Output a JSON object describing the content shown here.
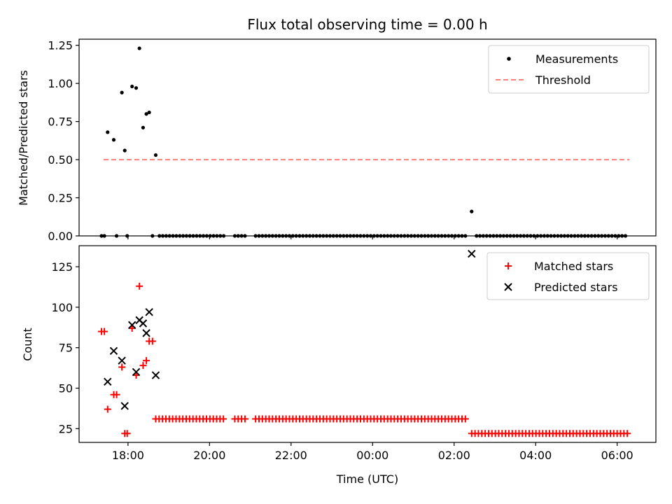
{
  "chart_data": [
    {
      "type": "scatter",
      "title": "Flux total observing time = 0.00 h",
      "xlabel": "",
      "ylabel": "Matched/Predicted stars",
      "ylim": [
        0,
        1.29
      ],
      "yticks": [
        0.0,
        0.25,
        0.5,
        0.75,
        1.0,
        1.25
      ],
      "ytick_labels": [
        "0.00",
        "0.25",
        "0.50",
        "0.75",
        "1.00",
        "1.25"
      ],
      "legend_position": "top-right",
      "series": [
        {
          "name": "Measurements",
          "marker": "dot",
          "color": "#000000",
          "points": [
            [
              17.5,
              0.68
            ],
            [
              17.65,
              0.63
            ],
            [
              17.85,
              0.94
            ],
            [
              17.92,
              0.56
            ],
            [
              18.1,
              0.98
            ],
            [
              18.2,
              0.97
            ],
            [
              18.28,
              1.23
            ],
            [
              18.37,
              0.71
            ],
            [
              18.45,
              0.8
            ],
            [
              18.52,
              0.81
            ],
            [
              18.68,
              0.53
            ],
            [
              26.43,
              0.16
            ],
            [
              17.35,
              0
            ],
            [
              17.42,
              0
            ],
            [
              17.72,
              0
            ],
            [
              17.98,
              0
            ],
            [
              18.6,
              0
            ]
          ],
          "zero_runs": [
            {
              "start": 18.77,
              "end": 20.35,
              "step": 0.083
            },
            {
              "start": 20.62,
              "end": 20.87,
              "step": 0.083
            },
            {
              "start": 21.13,
              "end": 26.3,
              "step": 0.083
            },
            {
              "start": 26.55,
              "end": 30.25,
              "step": 0.083
            }
          ]
        },
        {
          "name": "Threshold",
          "type": "line",
          "style": "dashed",
          "color": "#ff7f7f",
          "x": [
            17.4,
            30.3
          ],
          "values": [
            0.5,
            0.5
          ]
        }
      ]
    },
    {
      "type": "scatter",
      "xlabel": "Time (UTC)",
      "ylabel": "Count",
      "ylim": [
        16.5,
        138
      ],
      "yticks": [
        25,
        50,
        75,
        100,
        125
      ],
      "ytick_labels": [
        "25",
        "50",
        "75",
        "100",
        "125"
      ],
      "x_range_hours": [
        16.8,
        30.95
      ],
      "xticks_hours": [
        18,
        20,
        22,
        24,
        26,
        28,
        30
      ],
      "xtick_labels": [
        "18:00",
        "20:00",
        "22:00",
        "00:00",
        "02:00",
        "04:00",
        "06:00"
      ],
      "legend_position": "top-right",
      "series": [
        {
          "name": "Matched stars",
          "marker": "plus",
          "color": "#ff0000",
          "points": [
            [
              17.35,
              85
            ],
            [
              17.42,
              85
            ],
            [
              17.5,
              37
            ],
            [
              17.65,
              46
            ],
            [
              17.72,
              46
            ],
            [
              17.85,
              63
            ],
            [
              17.92,
              22
            ],
            [
              17.98,
              22
            ],
            [
              18.1,
              87
            ],
            [
              18.2,
              58
            ],
            [
              18.28,
              113
            ],
            [
              18.37,
              64
            ],
            [
              18.45,
              67
            ],
            [
              18.52,
              79
            ],
            [
              18.6,
              79
            ]
          ],
          "runs": [
            {
              "start": 18.68,
              "end": 20.35,
              "step": 0.083,
              "value": 31
            },
            {
              "start": 20.62,
              "end": 20.87,
              "step": 0.083,
              "value": 31
            },
            {
              "start": 21.13,
              "end": 26.3,
              "step": 0.083,
              "value": 31
            },
            {
              "start": 26.43,
              "end": 30.25,
              "step": 0.083,
              "value": 22
            }
          ]
        },
        {
          "name": "Predicted stars",
          "marker": "x",
          "color": "#000000",
          "points": [
            [
              17.5,
              54
            ],
            [
              17.65,
              73
            ],
            [
              17.85,
              67
            ],
            [
              17.92,
              39
            ],
            [
              18.1,
              89
            ],
            [
              18.2,
              60
            ],
            [
              18.28,
              92
            ],
            [
              18.37,
              90
            ],
            [
              18.45,
              84
            ],
            [
              18.52,
              97
            ],
            [
              18.68,
              58
            ],
            [
              26.43,
              133
            ]
          ]
        }
      ]
    }
  ],
  "colors": {
    "threshold": "#ff7f7f",
    "matched": "#ff0000",
    "predicted": "#000000",
    "measurement": "#000000"
  }
}
